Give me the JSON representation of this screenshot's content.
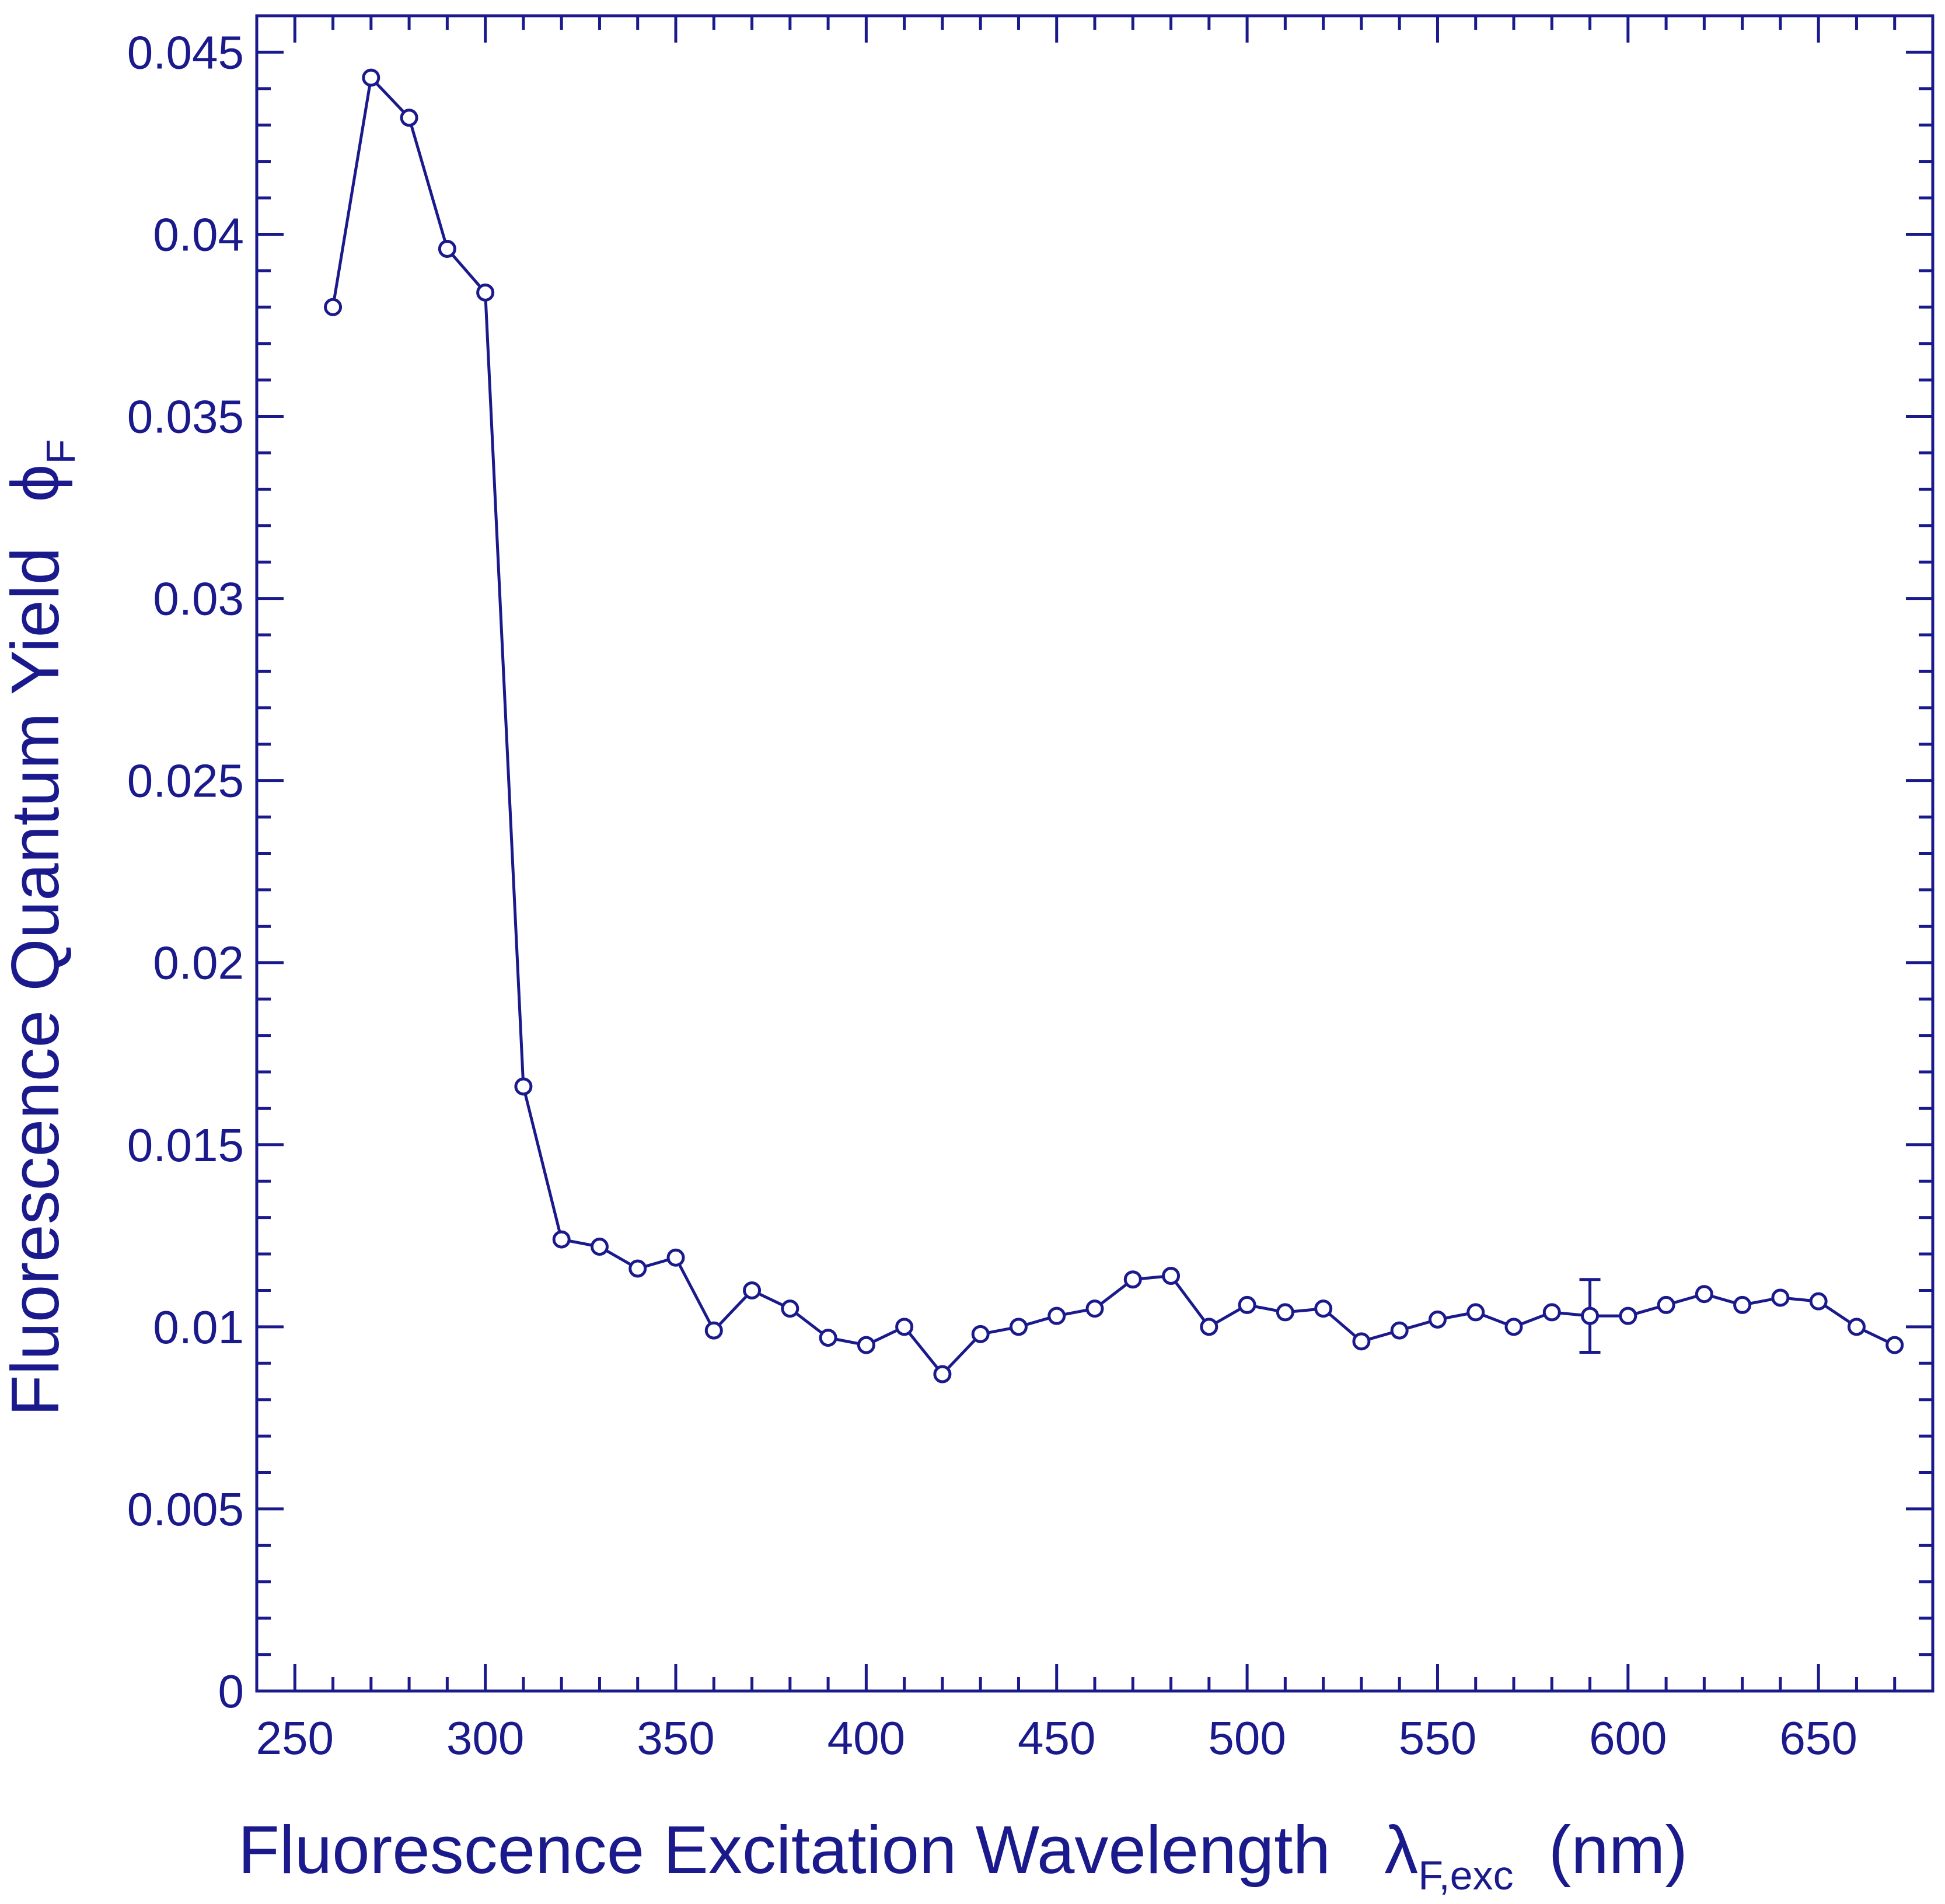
{
  "chart_data": {
    "type": "scatter",
    "title": "",
    "xlabel": {
      "main": "Fluorescence Excitation Wavelength",
      "symbol": "λ",
      "subscript": "F,exc",
      "unit": "(nm)"
    },
    "ylabel": {
      "main": "Fluorescence Quantum Yield",
      "symbol": "ϕ",
      "subscript": "F"
    },
    "xlim": [
      240,
      680
    ],
    "ylim": [
      0,
      0.046
    ],
    "x_ticks": [
      250,
      300,
      350,
      400,
      450,
      500,
      550,
      600,
      650
    ],
    "x_tick_labels": [
      "250",
      "300",
      "350",
      "400",
      "450",
      "500",
      "550",
      "600",
      "650"
    ],
    "y_ticks": [
      0,
      0.005,
      0.01,
      0.015,
      0.02,
      0.025,
      0.03,
      0.035,
      0.04,
      0.045
    ],
    "y_tick_labels": [
      "0",
      "0.005",
      "0.01",
      "0.015",
      "0.02",
      "0.025",
      "0.03",
      "0.035",
      "0.04",
      "0.045"
    ],
    "grid": false,
    "legend": "none",
    "marker": "open-circle",
    "line": true,
    "color": "#1a1a8c",
    "series": [
      {
        "x": [
          260,
          270,
          280,
          290,
          300,
          310,
          320,
          330,
          340,
          350,
          360,
          370,
          380,
          390,
          400,
          410,
          420,
          430,
          440,
          450,
          460,
          470,
          480,
          490,
          500,
          510,
          520,
          530,
          540,
          550,
          560,
          570,
          580,
          590,
          600,
          610,
          620,
          630,
          640,
          650,
          660,
          670
        ],
        "y": [
          0.038,
          0.0443,
          0.0432,
          0.0396,
          0.0384,
          0.0166,
          0.0124,
          0.0122,
          0.0116,
          0.0119,
          0.0099,
          0.011,
          0.0105,
          0.0097,
          0.0095,
          0.01,
          0.0087,
          0.0098,
          0.01,
          0.0103,
          0.0105,
          0.0113,
          0.0114,
          0.01,
          0.0106,
          0.0104,
          0.0105,
          0.0096,
          0.0099,
          0.0102,
          0.0104,
          0.01,
          0.0104,
          0.0103,
          0.0103,
          0.0106,
          0.0109,
          0.0106,
          0.0108,
          0.0107,
          0.01,
          0.0095
        ]
      }
    ],
    "error_bars": [
      {
        "x": 590,
        "y": 0.0103,
        "low": 0.0093,
        "high": 0.0113
      }
    ]
  }
}
